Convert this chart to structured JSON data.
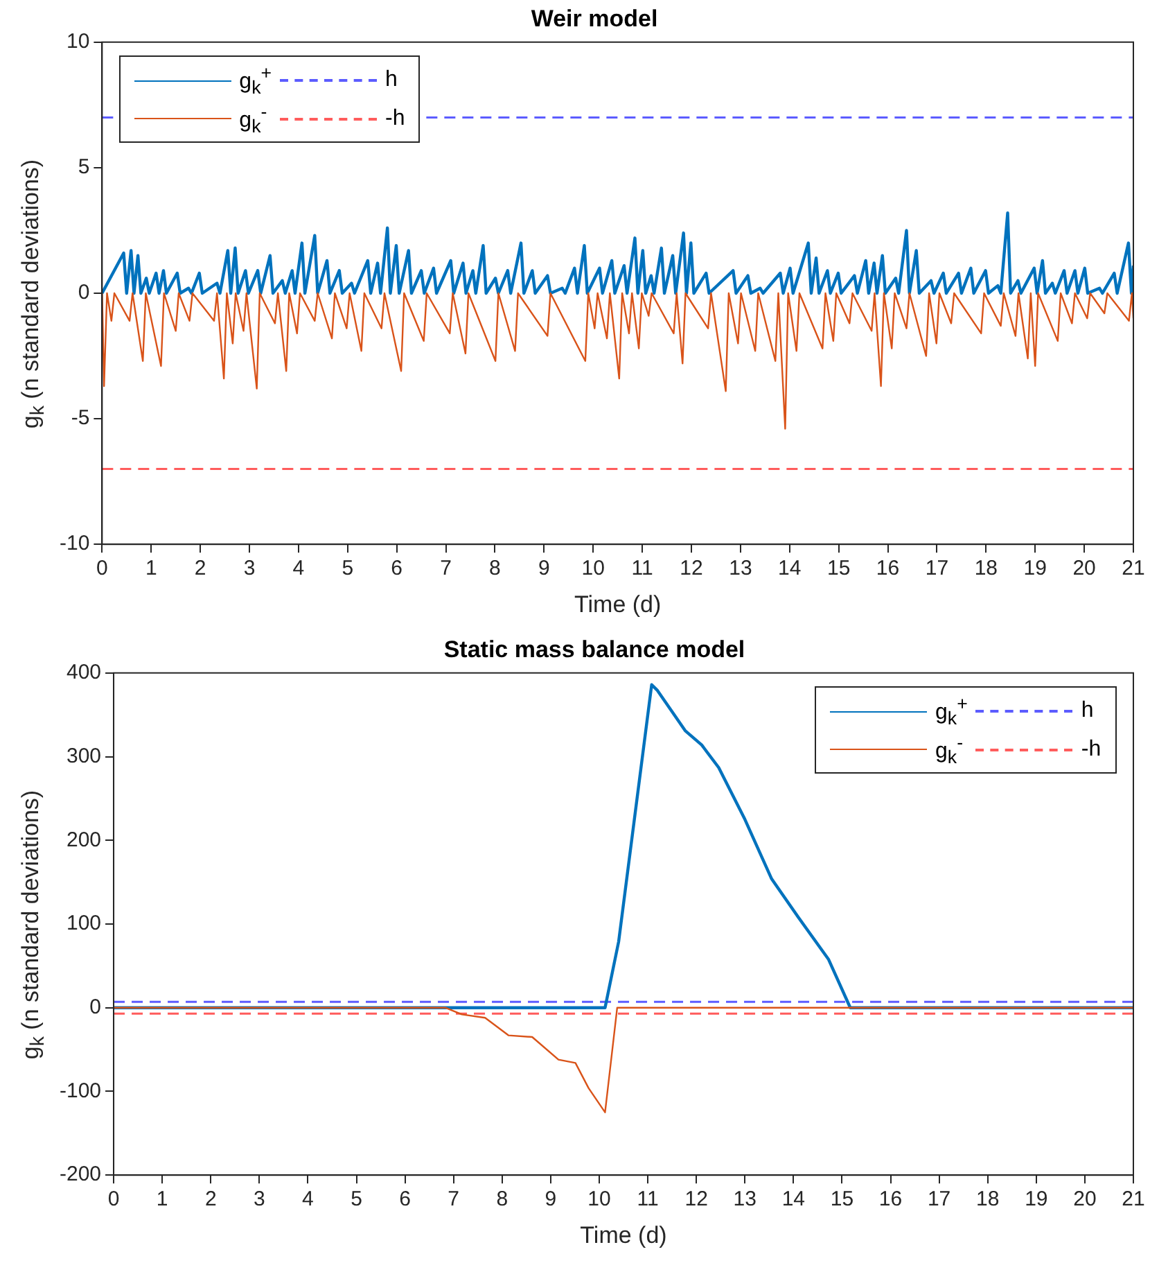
{
  "chart_data": [
    {
      "type": "line",
      "title": "Weir model",
      "xlabel": "Time (d)",
      "ylabel": "g$_{k}$ (n standard deviations)",
      "xlim": [
        0,
        21
      ],
      "xticks": [
        0,
        1,
        2,
        3,
        4,
        5,
        6,
        7,
        8,
        9,
        10,
        11,
        12,
        13,
        14,
        15,
        16,
        17,
        18,
        19,
        20,
        21
      ],
      "ylim": [
        -10,
        10
      ],
      "yticks": [
        -10,
        -5,
        0,
        5,
        10
      ],
      "grid": false,
      "legend": "top left",
      "series": [
        {
          "name": "g$_{k}$$^{+}$",
          "color": "#0072bd",
          "x": [
            0,
            0.44,
            0.5,
            0.59,
            0.65,
            0.73,
            0.79,
            0.9,
            0.96,
            1.1,
            1.16,
            1.25,
            1.31,
            1.53,
            1.59,
            1.76,
            1.82,
            1.98,
            2.04,
            2.34,
            2.4,
            2.56,
            2.62,
            2.71,
            2.77,
            2.92,
            2.98,
            3.17,
            3.23,
            3.42,
            3.48,
            3.67,
            3.73,
            3.87,
            3.93,
            4.07,
            4.13,
            4.33,
            4.39,
            4.58,
            4.64,
            4.83,
            4.89,
            5.08,
            5.14,
            5.41,
            5.47,
            5.61,
            5.67,
            5.81,
            5.87,
            5.99,
            6.05,
            6.24,
            6.3,
            6.5,
            6.56,
            6.75,
            6.81,
            7.1,
            7.16,
            7.35,
            7.41,
            7.55,
            7.61,
            7.76,
            7.82,
            8.01,
            8.07,
            8.26,
            8.32,
            8.53,
            8.59,
            8.76,
            8.82,
            9.07,
            9.13,
            9.37,
            9.43,
            9.62,
            9.68,
            9.82,
            9.88,
            10.13,
            10.19,
            10.38,
            10.44,
            10.63,
            10.69,
            10.85,
            10.91,
            11.01,
            11.07,
            11.18,
            11.24,
            11.39,
            11.45,
            11.62,
            11.68,
            11.84,
            11.9,
            11.99,
            12.05,
            12.3,
            12.36,
            12.85,
            12.91,
            13.15,
            13.21,
            13.4,
            13.46,
            13.81,
            13.87,
            14.01,
            14.07,
            14.38,
            14.44,
            14.54,
            14.6,
            14.77,
            14.83,
            14.99,
            15.05,
            15.32,
            15.38,
            15.55,
            15.61,
            15.72,
            15.78,
            15.89,
            15.95,
            16.16,
            16.22,
            16.38,
            16.44,
            16.58,
            16.64,
            16.88,
            16.94,
            17.13,
            17.19,
            17.44,
            17.5,
            17.69,
            17.75,
            17.99,
            18.05,
            18.24,
            18.3,
            18.44,
            18.5,
            18.65,
            18.71,
            18.98,
            19.04,
            19.15,
            19.21,
            19.35,
            19.41,
            19.59,
            19.65,
            19.81,
            19.87,
            20.01,
            20.07,
            20.31,
            20.37,
            20.61,
            20.67,
            20.9,
            20.96,
            21
          ],
          "values": [
            0,
            1.6,
            0,
            1.7,
            0,
            1.5,
            0,
            0.6,
            0,
            0.8,
            0,
            0.9,
            0,
            0.8,
            0,
            0.2,
            0,
            0.8,
            0,
            0.4,
            0,
            1.7,
            0,
            1.8,
            0,
            0.9,
            0,
            0.9,
            0,
            1.5,
            0,
            0.5,
            0,
            0.9,
            0,
            2.0,
            0,
            2.3,
            0,
            1.3,
            0,
            0.9,
            0,
            0.4,
            0,
            1.3,
            0,
            1.2,
            0,
            2.6,
            0,
            1.9,
            0,
            1.7,
            0,
            0.9,
            0,
            1.0,
            0,
            1.3,
            0,
            1.2,
            0,
            0.9,
            0,
            1.9,
            0,
            0.6,
            0,
            0.9,
            0,
            2.0,
            0,
            0.9,
            0,
            0.7,
            0,
            0.2,
            0,
            1.0,
            0,
            1.9,
            0,
            1.0,
            0,
            1.3,
            0,
            1.1,
            0,
            2.2,
            0,
            1.7,
            0,
            0.7,
            0,
            1.8,
            0,
            1.5,
            0,
            2.4,
            0,
            2.0,
            0,
            0.8,
            0,
            0.9,
            0,
            0.7,
            0,
            0.2,
            0,
            0.8,
            0,
            1.0,
            0,
            2.0,
            0,
            1.4,
            0,
            0.9,
            0,
            0.8,
            0,
            0.7,
            0,
            1.3,
            0,
            1.2,
            0,
            1.5,
            0,
            0.6,
            0,
            2.5,
            0,
            1.7,
            0,
            0.5,
            0,
            0.8,
            0,
            0.8,
            0,
            1.0,
            0,
            0.9,
            0,
            0.3,
            0,
            3.2,
            0,
            0.5,
            0,
            1.0,
            0,
            1.3,
            0,
            0.4,
            0,
            0.9,
            0,
            0.9,
            0,
            1.0,
            0,
            0.2,
            0,
            0.8,
            0,
            2.0,
            0,
            1.1
          ]
        },
        {
          "name": "g$_{k}$$^{-}$",
          "color": "#d95319",
          "x": [
            0,
            0.04,
            0.1,
            0.19,
            0.25,
            0.56,
            0.62,
            0.83,
            0.89,
            1.2,
            1.26,
            1.5,
            1.56,
            1.78,
            1.84,
            2.28,
            2.34,
            2.48,
            2.54,
            2.66,
            2.72,
            2.88,
            2.94,
            3.15,
            3.21,
            3.52,
            3.58,
            3.75,
            3.81,
            3.97,
            4.03,
            4.33,
            4.39,
            4.68,
            4.74,
            4.98,
            5.04,
            5.28,
            5.34,
            5.69,
            5.75,
            6.09,
            6.15,
            6.55,
            6.61,
            7.08,
            7.14,
            7.4,
            7.46,
            8.01,
            8.07,
            8.41,
            8.47,
            9.07,
            9.13,
            9.84,
            9.9,
            10.03,
            10.09,
            10.28,
            10.34,
            10.53,
            10.59,
            10.73,
            10.79,
            10.93,
            10.99,
            11.13,
            11.19,
            11.64,
            11.7,
            11.82,
            11.88,
            12.34,
            12.4,
            12.7,
            12.76,
            12.95,
            13.01,
            13.3,
            13.36,
            13.71,
            13.77,
            13.91,
            13.97,
            14.14,
            14.2,
            14.67,
            14.73,
            14.89,
            14.95,
            15.22,
            15.28,
            15.67,
            15.73,
            15.86,
            15.92,
            16.08,
            16.14,
            16.38,
            16.44,
            16.78,
            16.84,
            16.99,
            17.05,
            17.29,
            17.35,
            17.9,
            17.96,
            18.3,
            18.36,
            18.6,
            18.66,
            18.85,
            18.91,
            19.0,
            19.06,
            19.46,
            19.52,
            19.75,
            19.81,
            20.06,
            20.12,
            20.41,
            20.47,
            20.91,
            20.97,
            21
          ],
          "values": [
            0,
            -3.7,
            0,
            -1.1,
            0,
            -1.1,
            0,
            -2.7,
            0,
            -2.9,
            0,
            -1.5,
            0,
            -1.1,
            0,
            -1.1,
            0,
            -3.4,
            0,
            -2.0,
            0,
            -1.5,
            0,
            -3.8,
            0,
            -1.2,
            0,
            -3.1,
            0,
            -1.6,
            0,
            -1.1,
            0,
            -1.8,
            0,
            -1.4,
            0,
            -2.3,
            0,
            -1.4,
            0,
            -3.1,
            0,
            -1.9,
            0,
            -1.6,
            0,
            -2.4,
            0,
            -2.7,
            0,
            -2.3,
            0,
            -1.7,
            0,
            -2.7,
            0,
            -1.4,
            0,
            -1.8,
            0,
            -3.4,
            0,
            -1.6,
            0,
            -2.2,
            0,
            -0.9,
            0,
            -1.6,
            0,
            -2.8,
            0,
            -1.4,
            0,
            -3.9,
            0,
            -2.0,
            0,
            -2.3,
            0,
            -2.7,
            0,
            -5.4,
            0,
            -2.3,
            0,
            -2.2,
            0,
            -1.9,
            0,
            -1.2,
            0,
            -1.5,
            0,
            -3.7,
            0,
            -2.2,
            0,
            -1.4,
            0,
            -2.5,
            0,
            -2.0,
            0,
            -1.2,
            0,
            -1.6,
            0,
            -1.3,
            0,
            -1.7,
            0,
            -2.6,
            0,
            -2.9,
            0,
            -1.9,
            0,
            -1.2,
            0,
            -1.0,
            0,
            -0.8,
            0,
            -1.1,
            0,
            -1.0
          ]
        }
      ],
      "ref_lines": [
        {
          "axis": "y",
          "value": 7,
          "label": "h",
          "color": "#5c5cff",
          "line_style": "dashed"
        },
        {
          "axis": "y",
          "value": -7,
          "label": "-h",
          "color": "#ff5c5c",
          "line_style": "dashed"
        }
      ]
    },
    {
      "type": "line",
      "title": "Static mass balance model",
      "xlabel": "Time (d)",
      "ylabel": "g$_{k}$ (n standard deviations)",
      "xlim": [
        0,
        21
      ],
      "xticks": [
        0,
        1,
        2,
        3,
        4,
        5,
        6,
        7,
        8,
        9,
        10,
        11,
        12,
        13,
        14,
        15,
        16,
        17,
        18,
        19,
        20,
        21
      ],
      "ylim": [
        -200,
        400
      ],
      "yticks": [
        -200,
        -100,
        0,
        100,
        200,
        300,
        400
      ],
      "grid": false,
      "legend": "top right",
      "series": [
        {
          "name": "g$_{k}$$^{+}$",
          "color": "#0072bd",
          "x": [
            0,
            10.12,
            10.4,
            11.08,
            11.2,
            11.77,
            12.11,
            12.46,
            13.0,
            13.55,
            14.1,
            14.72,
            15.17,
            21
          ],
          "values": [
            0,
            0,
            79,
            386,
            379,
            331,
            314,
            287,
            225,
            154,
            108,
            58,
            0,
            0
          ]
        },
        {
          "name": "g$_{k}$$^{-}$",
          "color": "#d95319",
          "x": [
            0,
            6.83,
            7.17,
            7.65,
            8.13,
            8.62,
            9.16,
            9.51,
            9.78,
            10.12,
            10.37,
            21
          ],
          "values": [
            0,
            0,
            -8,
            -12,
            -33,
            -35,
            -62,
            -66,
            -96,
            -125,
            0,
            0
          ]
        }
      ],
      "ref_lines": [
        {
          "axis": "y",
          "value": 7,
          "label": "h",
          "color": "#5c5cff",
          "line_style": "dashed"
        },
        {
          "axis": "y",
          "value": -7,
          "label": "-h",
          "color": "#ff5c5c",
          "line_style": "dashed"
        }
      ]
    }
  ]
}
